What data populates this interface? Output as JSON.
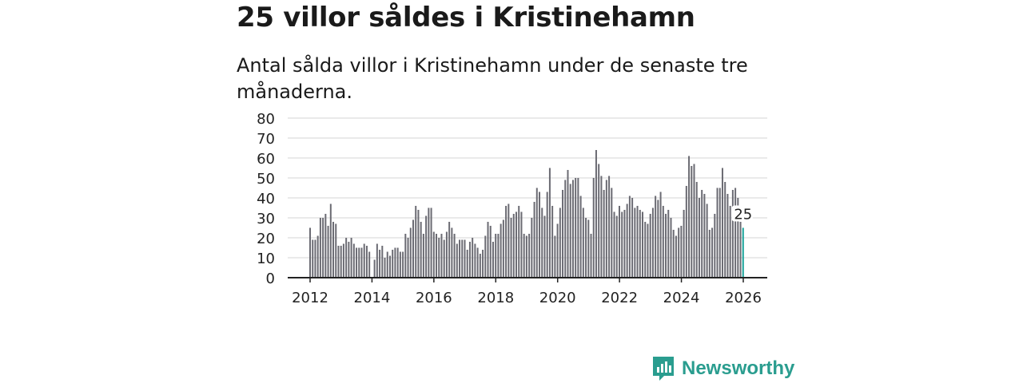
{
  "header": {
    "title": "25 villor såldes i Kristinehamn",
    "subtitle": "Antal sålda villor i Kristinehamn under de senaste tre månaderna."
  },
  "brand": {
    "name": "Newsworthy",
    "color": "#2a9d8f"
  },
  "colors": {
    "bar": "#6b6b73",
    "highlight": "#1aa39a",
    "grid": "#d6d6d6",
    "axis": "#222222"
  },
  "chart_data": {
    "type": "bar",
    "title": "",
    "xlabel": "",
    "ylabel": "",
    "ylim": [
      0,
      80
    ],
    "yticks": [
      0,
      10,
      20,
      30,
      40,
      50,
      60,
      70,
      80
    ],
    "xticks": [
      "2012",
      "2014",
      "2016",
      "2018",
      "2020",
      "2022",
      "2024",
      "2026"
    ],
    "x_start": 2012.0,
    "x_end": 2026.0,
    "bar_step_years": 0.0833,
    "series": [
      {
        "name": "Antal sålda villor",
        "values": [
          25,
          19,
          19,
          21,
          30,
          30,
          32,
          26,
          37,
          28,
          27,
          16,
          16,
          17,
          20,
          18,
          20,
          17,
          15,
          15,
          15,
          17,
          16,
          13,
          0,
          9,
          17,
          14,
          16,
          10,
          13,
          11,
          14,
          15,
          15,
          13,
          13,
          22,
          20,
          25,
          29,
          36,
          34,
          28,
          22,
          31,
          35,
          35,
          23,
          22,
          20,
          22,
          19,
          23,
          28,
          25,
          22,
          17,
          19,
          19,
          19,
          14,
          18,
          20,
          17,
          15,
          12,
          14,
          21,
          28,
          26,
          18,
          22,
          22,
          27,
          29,
          36,
          37,
          30,
          32,
          33,
          36,
          33,
          22,
          21,
          22,
          30,
          38,
          45,
          43,
          35,
          31,
          43,
          55,
          36,
          21,
          27,
          35,
          44,
          49,
          54,
          47,
          49,
          50,
          50,
          41,
          35,
          30,
          29,
          22,
          50,
          64,
          57,
          51,
          44,
          49,
          51,
          45,
          33,
          31,
          36,
          33,
          34,
          37,
          41,
          40,
          35,
          36,
          34,
          33,
          28,
          27,
          32,
          35,
          41,
          39,
          43,
          36,
          32,
          34,
          30,
          24,
          21,
          25,
          26,
          34,
          46,
          61,
          56,
          57,
          48,
          40,
          44,
          42,
          37,
          24,
          25,
          32,
          45,
          45,
          55,
          48,
          42,
          36,
          44,
          45,
          40,
          28,
          25
        ]
      }
    ],
    "highlight_label": "25",
    "legend": "none"
  }
}
